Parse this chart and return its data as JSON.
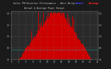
{
  "title": "Solar PV/Inverter Performance - West Array",
  "subtitle": "Actual & Average Power Output",
  "fig_bg_color": "#1a1a1a",
  "plot_bg_color": "#2a2a2a",
  "bar_color": "#cc0000",
  "avg_line_color": "#00dddd",
  "grid_color": "#888888",
  "legend_actual_color": "#4444ff",
  "legend_avg_color": "#ff2222",
  "title_color": "#cccccc",
  "tick_color": "#cccccc",
  "ylim": [
    0,
    2.1
  ],
  "num_bars": 144,
  "avg_line_y": 0.42,
  "yticks": [
    0.0,
    0.5,
    1.0,
    1.5,
    2.0
  ],
  "ytick_labels": [
    "0.0",
    "0.5",
    "1.0",
    "1.5",
    "2.0"
  ],
  "xtick_labels": [
    "0",
    "2",
    "4",
    "6",
    "8",
    "10",
    "12",
    "14",
    "16",
    "18",
    "20",
    "22",
    "24"
  ]
}
